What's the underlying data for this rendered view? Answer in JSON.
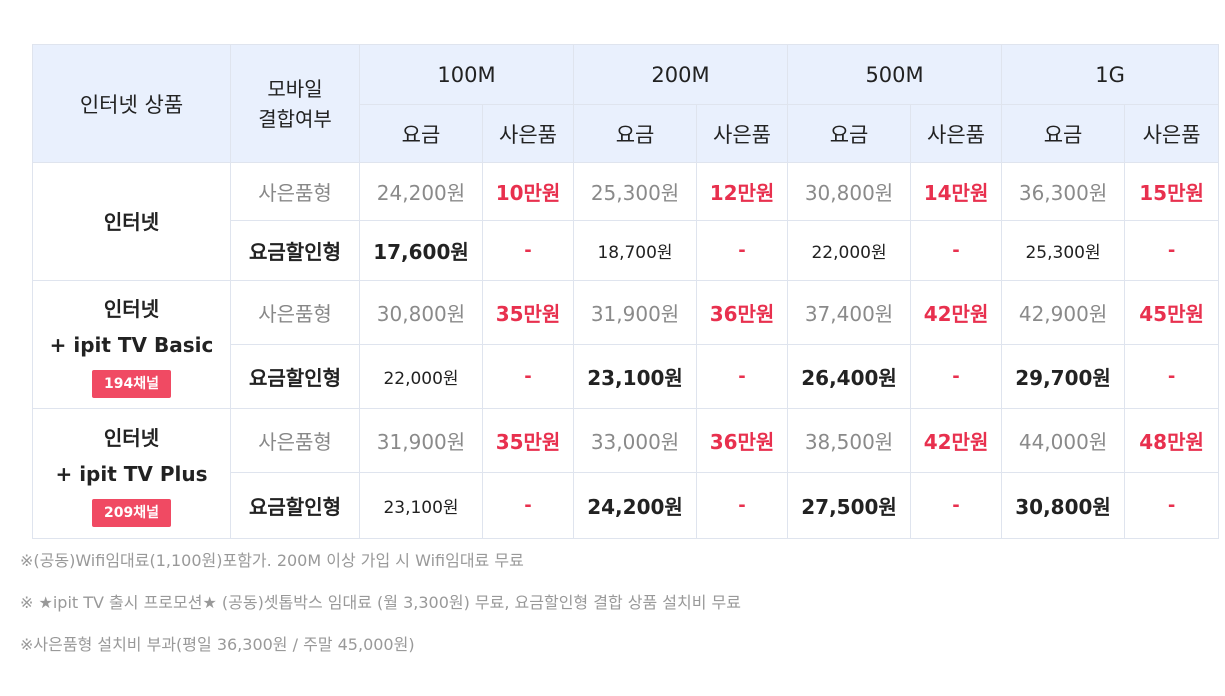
{
  "header": {
    "product": "인터넷 상품",
    "mobile_line1": "모바일",
    "mobile_line2": "결합여부",
    "speeds": [
      "100M",
      "200M",
      "500M",
      "1G"
    ],
    "fee": "요금",
    "gift": "사은품"
  },
  "rows": [
    {
      "product_line1": "인터넷",
      "product_line2": "",
      "badge": "",
      "gift_type": {
        "label": "사은품형",
        "prices": [
          "24,200원",
          "25,300원",
          "30,800원",
          "36,300원"
        ],
        "gifts": [
          "10만원",
          "12만원",
          "14만원",
          "15만원"
        ]
      },
      "discount_type": {
        "label": "요금할인형",
        "prices": [
          "17,600원",
          "18,700원",
          "22,000원",
          "25,300원"
        ],
        "gifts": [
          "-",
          "-",
          "-",
          "-"
        ]
      }
    },
    {
      "product_line1": "인터넷",
      "product_line2": "+ ipit TV Basic",
      "badge": "194채널",
      "gift_type": {
        "label": "사은품형",
        "prices": [
          "30,800원",
          "31,900원",
          "37,400원",
          "42,900원"
        ],
        "gifts": [
          "35만원",
          "36만원",
          "42만원",
          "45만원"
        ]
      },
      "discount_type": {
        "label": "요금할인형",
        "prices": [
          "22,000원",
          "23,100원",
          "26,400원",
          "29,700원"
        ],
        "gifts": [
          "-",
          "-",
          "-",
          "-"
        ]
      }
    },
    {
      "product_line1": "인터넷",
      "product_line2": "+ ipit TV Plus",
      "badge": "209채널",
      "gift_type": {
        "label": "사은품형",
        "prices": [
          "31,900원",
          "33,000원",
          "38,500원",
          "44,000원"
        ],
        "gifts": [
          "35만원",
          "36만원",
          "42만원",
          "48만원"
        ]
      },
      "discount_type": {
        "label": "요금할인형",
        "prices": [
          "23,100원",
          "24,200원",
          "27,500원",
          "30,800원"
        ],
        "gifts": [
          "-",
          "-",
          "-",
          "-"
        ]
      }
    }
  ],
  "notes": [
    "※(공동)Wifi임대료(1,100원)포함가. 200M 이상 가입 시 Wifi임대료 무료",
    "※ ★ipit TV 출시 프로모션★ (공동)셋톱박스 임대료 (월 3,300원) 무료, 요금할인형 결합 상품 설치비 무료",
    "※사은품형 설치비 부과(평일 36,300원 / 주말 45,000원)"
  ],
  "colors": {
    "header_bg": "#e9f0fd",
    "accent_red": "#e8304e",
    "badge_bg": "#f04a63",
    "border": "#dfe4ee"
  }
}
